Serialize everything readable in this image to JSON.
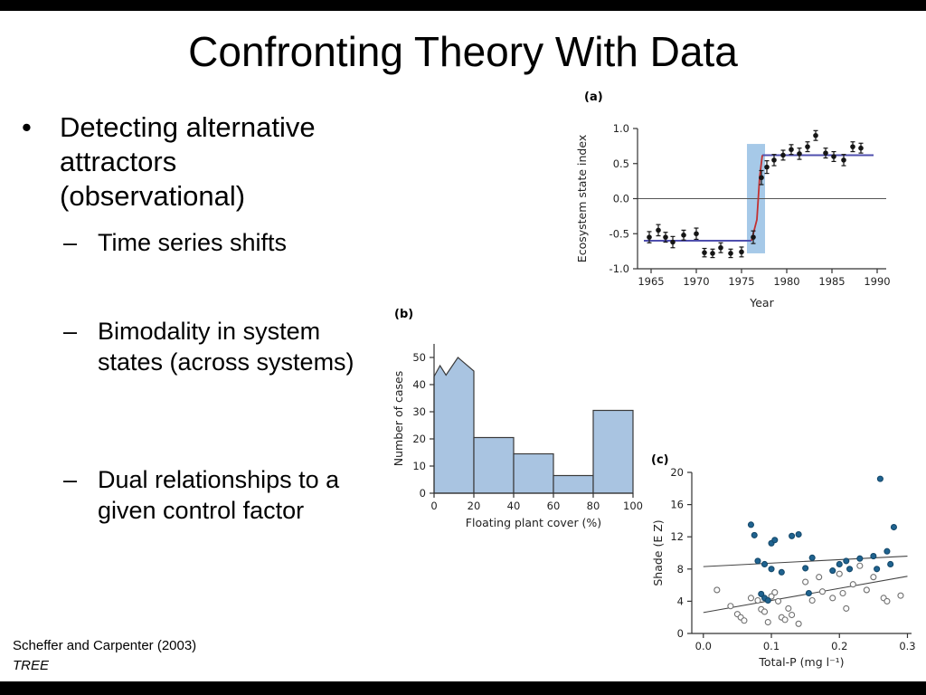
{
  "slide": {
    "title": "Confronting Theory With Data",
    "bullet_char": "•",
    "dash_char": "–",
    "bullets": {
      "main": "Detecting alternative attractors (observational)",
      "subs": [
        "Time series shifts",
        "Bimodality in system states (across systems)",
        "Dual relationships to a given control factor"
      ]
    },
    "citation": {
      "line1": "Scheffer and Carpenter (2003)",
      "line2": "TREE"
    }
  },
  "chart_data": [
    {
      "id": "panel-a",
      "type": "scatter",
      "panel_label": "(a)",
      "xlabel": "Year",
      "ylabel": "Ecosystem state index",
      "xlim": [
        1963.5,
        1991
      ],
      "ylim": [
        -1.0,
        1.0
      ],
      "xticks": [
        1965,
        1970,
        1975,
        1980,
        1985,
        1990
      ],
      "xtick_labels": [
        "1965",
        "1970",
        "1975",
        "1980",
        "1985",
        "1990"
      ],
      "yticks": [
        1.0,
        0.5,
        0.0,
        -0.5,
        -1.0
      ],
      "ytick_labels": [
        "1.0",
        "0.5",
        "0.0",
        "-0.5",
        "-1.0"
      ],
      "shaded_band": {
        "x0": 1975.6,
        "x1": 1977.6,
        "y0": -0.78,
        "y1": 0.78,
        "color": "#a6c9e8"
      },
      "state_line_color": "#4f4fae",
      "state_lines": [
        {
          "x0": 1964.2,
          "x1": 1976.1,
          "y": -0.6
        },
        {
          "x0": 1977.3,
          "x1": 1989.6,
          "y": 0.62
        }
      ],
      "transition_line": {
        "color": "#c23030",
        "points": [
          [
            1976.1,
            -0.6
          ],
          [
            1976.7,
            -0.3
          ],
          [
            1977.0,
            0.3
          ],
          [
            1977.3,
            0.62
          ]
        ]
      },
      "point_color": "#151515",
      "points": [
        [
          1964.8,
          -0.55,
          0.08
        ],
        [
          1965.8,
          -0.45,
          0.08
        ],
        [
          1966.6,
          -0.55,
          0.07
        ],
        [
          1967.4,
          -0.62,
          0.08
        ],
        [
          1968.6,
          -0.52,
          0.07
        ],
        [
          1970.0,
          -0.5,
          0.08
        ],
        [
          1970.9,
          -0.77,
          0.06
        ],
        [
          1971.8,
          -0.78,
          0.06
        ],
        [
          1972.7,
          -0.7,
          0.07
        ],
        [
          1973.8,
          -0.78,
          0.06
        ],
        [
          1975.0,
          -0.76,
          0.07
        ],
        [
          1976.3,
          -0.55,
          0.09
        ],
        [
          1977.2,
          0.3,
          0.1
        ],
        [
          1977.8,
          0.45,
          0.09
        ],
        [
          1978.6,
          0.55,
          0.08
        ],
        [
          1979.6,
          0.62,
          0.07
        ],
        [
          1980.5,
          0.7,
          0.07
        ],
        [
          1981.4,
          0.64,
          0.08
        ],
        [
          1982.3,
          0.74,
          0.07
        ],
        [
          1983.2,
          0.9,
          0.07
        ],
        [
          1984.3,
          0.65,
          0.07
        ],
        [
          1985.2,
          0.6,
          0.07
        ],
        [
          1986.3,
          0.55,
          0.08
        ],
        [
          1987.3,
          0.74,
          0.07
        ],
        [
          1988.2,
          0.72,
          0.07
        ]
      ]
    },
    {
      "id": "panel-b",
      "type": "histogram",
      "panel_label": "(b)",
      "xlabel": "Floating plant cover (%)",
      "ylabel": "Number of cases",
      "xlim": [
        0,
        100
      ],
      "ylim": [
        0,
        55
      ],
      "xticks": [
        0,
        20,
        40,
        60,
        80,
        100
      ],
      "xtick_labels": [
        "0",
        "20",
        "40",
        "60",
        "80",
        "100"
      ],
      "yticks": [
        0,
        10,
        20,
        30,
        40,
        50
      ],
      "ytick_labels": [
        "0",
        "10",
        "20",
        "30",
        "40",
        "50"
      ],
      "fill": "#a9c4e1",
      "stroke": "#3a3a3a",
      "first_bin_profile": [
        [
          0,
          43
        ],
        [
          3,
          47
        ],
        [
          6,
          43.5
        ],
        [
          12,
          50
        ],
        [
          20,
          45
        ]
      ],
      "bars": [
        {
          "x0": 20,
          "x1": 40,
          "h": 20.5
        },
        {
          "x0": 40,
          "x1": 60,
          "h": 14.5
        },
        {
          "x0": 60,
          "x1": 80,
          "h": 6.5
        },
        {
          "x0": 80,
          "x1": 100,
          "h": 30.5
        }
      ]
    },
    {
      "id": "panel-c",
      "type": "scatter",
      "panel_label": "(c)",
      "xlabel": "Total-P (mg l⁻¹)",
      "ylabel": "Shade (E Z)",
      "xlim": [
        -0.017,
        0.306
      ],
      "ylim": [
        0,
        20
      ],
      "xticks": [
        0.0,
        0.1,
        0.2,
        0.3
      ],
      "xtick_labels": [
        "0.0",
        "0.1",
        "0.2",
        "0.3"
      ],
      "yticks": [
        0,
        4,
        8,
        12,
        16,
        20
      ],
      "ytick_labels": [
        "0",
        "4",
        "8",
        "12",
        "16",
        "20"
      ],
      "trend_line_color": "#444444",
      "trend_lines": [
        {
          "x0": 0.0,
          "y0": 8.3,
          "x1": 0.3,
          "y1": 9.6
        },
        {
          "x0": 0.0,
          "y0": 2.6,
          "x1": 0.3,
          "y1": 7.1
        }
      ],
      "series": [
        {
          "name": "open",
          "style": "open",
          "color": "#ffffff",
          "stroke": "#707070",
          "points": [
            [
              0.02,
              5.4
            ],
            [
              0.04,
              3.4
            ],
            [
              0.05,
              2.4
            ],
            [
              0.055,
              2.0
            ],
            [
              0.06,
              1.6
            ],
            [
              0.07,
              4.4
            ],
            [
              0.08,
              4.1
            ],
            [
              0.085,
              3.0
            ],
            [
              0.09,
              2.7
            ],
            [
              0.095,
              1.4
            ],
            [
              0.1,
              4.6
            ],
            [
              0.105,
              5.1
            ],
            [
              0.11,
              4.0
            ],
            [
              0.115,
              2.0
            ],
            [
              0.12,
              1.7
            ],
            [
              0.125,
              3.1
            ],
            [
              0.13,
              2.3
            ],
            [
              0.14,
              1.2
            ],
            [
              0.15,
              6.4
            ],
            [
              0.16,
              4.1
            ],
            [
              0.17,
              7.0
            ],
            [
              0.175,
              5.2
            ],
            [
              0.19,
              4.4
            ],
            [
              0.2,
              7.4
            ],
            [
              0.205,
              5.0
            ],
            [
              0.21,
              3.1
            ],
            [
              0.22,
              6.1
            ],
            [
              0.23,
              8.4
            ],
            [
              0.24,
              5.4
            ],
            [
              0.25,
              7.0
            ],
            [
              0.265,
              4.4
            ],
            [
              0.27,
              4.0
            ],
            [
              0.29,
              4.7
            ]
          ]
        },
        {
          "name": "filled",
          "style": "filled",
          "color": "#1f6390",
          "stroke": "#15496b",
          "points": [
            [
              0.07,
              13.5
            ],
            [
              0.075,
              12.2
            ],
            [
              0.08,
              9.0
            ],
            [
              0.09,
              8.6
            ],
            [
              0.085,
              4.9
            ],
            [
              0.09,
              4.4
            ],
            [
              0.095,
              4.1
            ],
            [
              0.1,
              11.2
            ],
            [
              0.105,
              11.6
            ],
            [
              0.1,
              8.0
            ],
            [
              0.115,
              7.6
            ],
            [
              0.13,
              12.1
            ],
            [
              0.14,
              12.3
            ],
            [
              0.15,
              8.1
            ],
            [
              0.155,
              5.0
            ],
            [
              0.16,
              9.4
            ],
            [
              0.19,
              7.8
            ],
            [
              0.2,
              8.6
            ],
            [
              0.21,
              9.0
            ],
            [
              0.215,
              8.0
            ],
            [
              0.23,
              9.3
            ],
            [
              0.25,
              9.6
            ],
            [
              0.255,
              8.0
            ],
            [
              0.26,
              19.2
            ],
            [
              0.27,
              10.2
            ],
            [
              0.275,
              8.6
            ],
            [
              0.28,
              13.2
            ]
          ]
        }
      ]
    }
  ]
}
